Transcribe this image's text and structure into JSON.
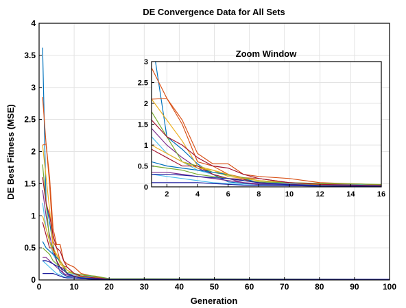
{
  "chart_data": [
    {
      "type": "line",
      "title": "DE Convergence Data for All Sets",
      "xlabel": "Generation",
      "ylabel": "DE Best Fitness (MSE)",
      "xlim": [
        0,
        100
      ],
      "ylim": [
        0,
        4
      ],
      "xticks": [
        0,
        10,
        20,
        30,
        40,
        50,
        60,
        70,
        80,
        90,
        100
      ],
      "yticks": [
        0,
        0.5,
        1,
        1.5,
        2,
        2.5,
        3,
        3.5,
        4
      ],
      "grid": true,
      "legend": "none",
      "series": [
        {
          "color": "#0072BD",
          "x": [
            1,
            2,
            3,
            4,
            5,
            6,
            7,
            8,
            10,
            12,
            16,
            20,
            100
          ],
          "y": [
            3.62,
            1.2,
            0.9,
            0.55,
            0.3,
            0.12,
            0.08,
            0.06,
            0.05,
            0.04,
            0.02,
            0.01,
            0.01
          ]
        },
        {
          "color": "#D95319",
          "x": [
            1,
            2,
            3,
            4,
            5,
            6,
            7,
            8,
            10,
            12,
            16,
            20,
            100
          ],
          "y": [
            2.85,
            2.12,
            1.5,
            0.6,
            0.5,
            0.3,
            0.22,
            0.2,
            0.1,
            0.06,
            0.03,
            0.01,
            0.01
          ]
        },
        {
          "color": "#EDB120",
          "x": [
            1,
            2,
            3,
            4,
            5,
            6,
            7,
            8,
            10,
            12,
            16,
            20,
            100
          ],
          "y": [
            2.1,
            1.6,
            1.1,
            0.5,
            0.4,
            0.25,
            0.2,
            0.1,
            0.08,
            0.05,
            0.02,
            0.01,
            0.01
          ]
        },
        {
          "color": "#7E2F8E",
          "x": [
            1,
            2,
            3,
            4,
            5,
            6,
            7,
            8,
            10,
            12,
            16,
            20,
            100
          ],
          "y": [
            1.4,
            1.0,
            0.7,
            0.45,
            0.3,
            0.2,
            0.1,
            0.08,
            0.05,
            0.03,
            0.02,
            0.01,
            0.01
          ]
        },
        {
          "color": "#77AC30",
          "x": [
            1,
            2,
            3,
            4,
            5,
            6,
            7,
            8,
            10,
            12,
            16,
            20,
            100
          ],
          "y": [
            1.8,
            1.2,
            0.6,
            0.5,
            0.35,
            0.28,
            0.22,
            0.15,
            0.1,
            0.08,
            0.04,
            0.01,
            0.01
          ]
        },
        {
          "color": "#4DBEEE",
          "x": [
            1,
            2,
            3,
            4,
            5,
            6,
            7,
            8,
            10,
            12,
            16,
            20,
            100
          ],
          "y": [
            1.2,
            0.8,
            0.6,
            0.4,
            0.3,
            0.2,
            0.15,
            0.1,
            0.08,
            0.06,
            0.05,
            0.01,
            0.01
          ]
        },
        {
          "color": "#A2142F",
          "x": [
            1,
            2,
            3,
            4,
            5,
            6,
            7,
            8,
            10,
            12,
            16,
            20,
            100
          ],
          "y": [
            0.9,
            0.7,
            0.5,
            0.5,
            0.3,
            0.2,
            0.18,
            0.1,
            0.06,
            0.04,
            0.02,
            0.01,
            0.01
          ]
        },
        {
          "color": "#0072BD",
          "x": [
            1,
            2,
            3,
            4,
            5,
            6,
            7,
            8,
            10,
            12,
            16,
            20,
            100
          ],
          "y": [
            0.6,
            0.5,
            0.45,
            0.4,
            0.35,
            0.3,
            0.2,
            0.1,
            0.05,
            0.04,
            0.03,
            0.01,
            0.01
          ]
        },
        {
          "color": "#D95319",
          "x": [
            1,
            2,
            3,
            4,
            5,
            6,
            7,
            8,
            10,
            12,
            16,
            20,
            100
          ],
          "y": [
            2.1,
            2.12,
            1.6,
            0.8,
            0.55,
            0.55,
            0.3,
            0.25,
            0.2,
            0.1,
            0.05,
            0.01,
            0.01
          ]
        },
        {
          "color": "#EDB120",
          "x": [
            1,
            2,
            3,
            4,
            5,
            6,
            7,
            8,
            10,
            12,
            16,
            20,
            100
          ],
          "y": [
            1.0,
            0.8,
            0.6,
            0.45,
            0.4,
            0.3,
            0.2,
            0.15,
            0.1,
            0.05,
            0.03,
            0.01,
            0.01
          ]
        },
        {
          "color": "#7E2F8E",
          "x": [
            1,
            2,
            3,
            4,
            5,
            6,
            7,
            8,
            10,
            12,
            16,
            20,
            100
          ],
          "y": [
            0.35,
            0.35,
            0.3,
            0.25,
            0.2,
            0.15,
            0.1,
            0.05,
            0.03,
            0.02,
            0.01,
            0.01,
            0.01
          ]
        },
        {
          "color": "#77AC30",
          "x": [
            1,
            2,
            3,
            4,
            5,
            6,
            7,
            8,
            10,
            12,
            16,
            20,
            100
          ],
          "y": [
            0.5,
            0.45,
            0.4,
            0.3,
            0.25,
            0.2,
            0.15,
            0.12,
            0.1,
            0.08,
            0.06,
            0.02,
            0.01
          ]
        },
        {
          "color": "#4DBEEE",
          "x": [
            1,
            2,
            3,
            4,
            5,
            6,
            7,
            8,
            10,
            12,
            16,
            20,
            100
          ],
          "y": [
            0.3,
            0.25,
            0.2,
            0.15,
            0.1,
            0.08,
            0.05,
            0.04,
            0.03,
            0.02,
            0.01,
            0.01,
            0.01
          ]
        },
        {
          "color": "#A2142F",
          "x": [
            1,
            2,
            3,
            4,
            5,
            6,
            7,
            8,
            10,
            12,
            16,
            20,
            100
          ],
          "y": [
            1.6,
            1.2,
            1.0,
            0.7,
            0.5,
            0.45,
            0.3,
            0.2,
            0.1,
            0.06,
            0.03,
            0.01,
            0.01
          ]
        },
        {
          "color": "#1F1F9F",
          "x": [
            1,
            2,
            3,
            4,
            5,
            6,
            7,
            8,
            10,
            12,
            16,
            20,
            100
          ],
          "y": [
            0.1,
            0.1,
            0.1,
            0.1,
            0.08,
            0.06,
            0.04,
            0.03,
            0.03,
            0.02,
            0.01,
            0.01,
            0.01
          ]
        },
        {
          "color": "#1F1F9F",
          "x": [
            1,
            2,
            3,
            4,
            5,
            6,
            7,
            8,
            10,
            12,
            16,
            20,
            100
          ],
          "y": [
            0.3,
            0.3,
            0.28,
            0.25,
            0.22,
            0.2,
            0.15,
            0.1,
            0.05,
            0.03,
            0.02,
            0.01,
            0.01
          ]
        }
      ]
    },
    {
      "type": "line",
      "title": "Zoom Window",
      "xlim": [
        1,
        16
      ],
      "ylim": [
        0,
        3
      ],
      "xticks": [
        2,
        4,
        6,
        8,
        10,
        12,
        14,
        16
      ],
      "yticks": [
        0,
        0.5,
        1,
        1.5,
        2,
        2.5,
        3
      ],
      "grid": true,
      "series_source": "same series as main plot"
    }
  ]
}
